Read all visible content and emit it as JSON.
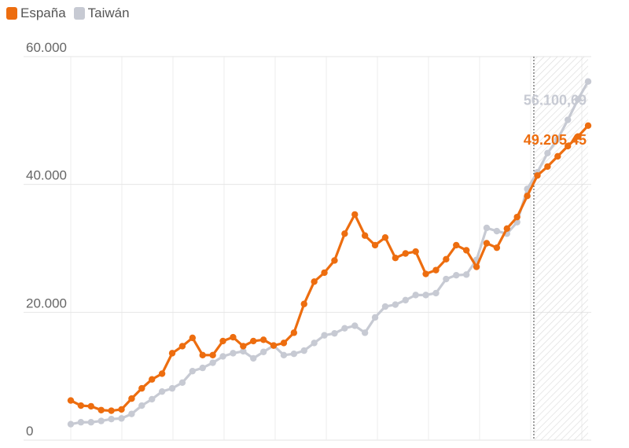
{
  "legend": {
    "items": [
      {
        "name": "España",
        "color": "#ed6d0f"
      },
      {
        "name": "Taiwán",
        "color": "#c7cad3"
      }
    ]
  },
  "chart_data": {
    "type": "line",
    "title": "",
    "xlabel": "",
    "ylabel": "",
    "ylim": [
      0,
      60000
    ],
    "y_ticks": [
      "0",
      "20.000",
      "40.000",
      "60.000"
    ],
    "y_tick_values": [
      0,
      20000,
      40000,
      60000
    ],
    "grid": true,
    "legend_position": "top-left",
    "forecast_from_index": 46,
    "series": [
      {
        "name": "España",
        "color": "#ed6d0f",
        "end_label": "49.205,45",
        "values": [
          6200,
          5400,
          5300,
          4700,
          4600,
          4800,
          6500,
          8100,
          9500,
          10400,
          13600,
          14700,
          16000,
          13300,
          13300,
          15500,
          16100,
          14700,
          15500,
          15700,
          14800,
          15200,
          16800,
          21300,
          24800,
          26200,
          28100,
          32300,
          35300,
          32000,
          30500,
          31700,
          28500,
          29200,
          29500,
          26000,
          26600,
          28300,
          30500,
          29700,
          27100,
          30800,
          30100,
          33100,
          34900,
          38200,
          41400,
          42800,
          44400,
          46000,
          47500,
          49205.45
        ]
      },
      {
        "name": "Taiwán",
        "color": "#c7cad3",
        "end_label": "56.100,69",
        "values": [
          2500,
          2800,
          2800,
          3000,
          3300,
          3400,
          4100,
          5400,
          6400,
          7600,
          8100,
          9000,
          10800,
          11300,
          12100,
          13100,
          13600,
          13900,
          12800,
          13800,
          14800,
          13300,
          13500,
          14000,
          15200,
          16400,
          16700,
          17500,
          17900,
          16800,
          19200,
          20900,
          21200,
          21900,
          22700,
          22700,
          23000,
          25200,
          25800,
          25900,
          28200,
          33200,
          32700,
          32300,
          34100,
          39300,
          41900,
          44900,
          47100,
          50100,
          53300,
          56100.69
        ]
      }
    ]
  }
}
